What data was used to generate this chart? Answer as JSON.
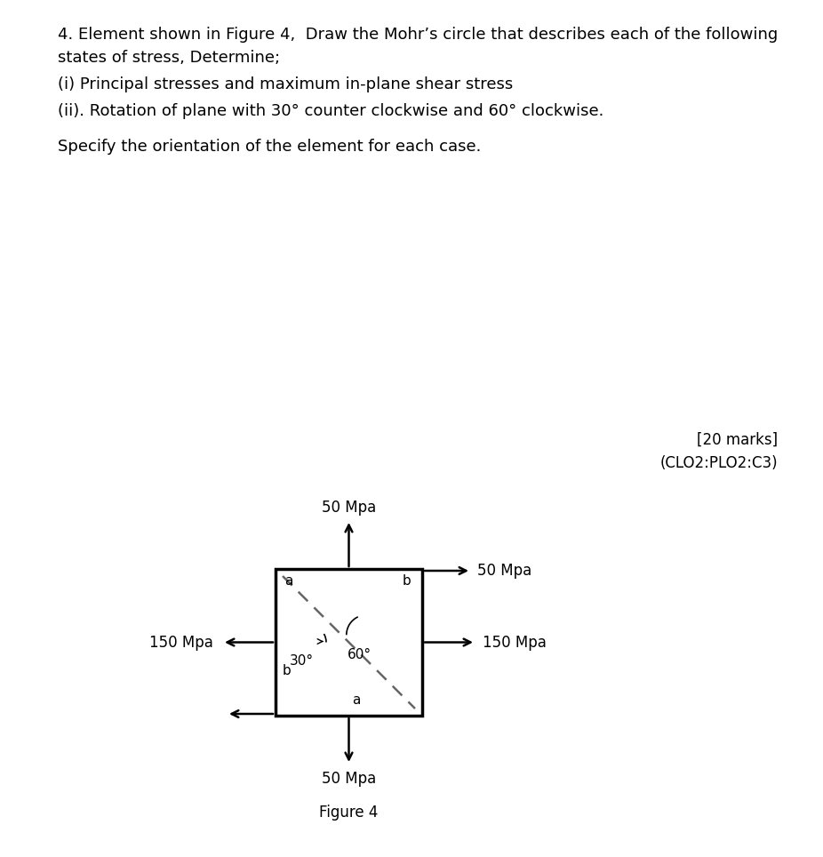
{
  "line0": "4. Element shown in Figure 4,  Draw the Mohr’s circle that describes each of the following",
  "line1": "states of stress, Determine;",
  "line2": "(i) Principal stresses and maximum in-plane shear stress",
  "line3": "(ii). Rotation of plane with 30° counter clockwise and 60° clockwise.",
  "line4": "Specify the orientation of the element for each case.",
  "marks_text": "[20 marks]",
  "clo_text": "(CLO2:PLO2:C3)",
  "fig_label": "Figure 4",
  "stress_top": "50 Mpa",
  "stress_bottom": "50 Mpa",
  "stress_right": "150 Mpa",
  "stress_left": "150 Mpa",
  "stress_top_right": "50 Mpa",
  "angle_30": "30°",
  "angle_60": "60°",
  "label_a_topleft": "a",
  "label_b_topright": "b",
  "label_b_botleft": "b",
  "label_a_botright": "a",
  "box_color": "#000000",
  "background_color": "#ffffff",
  "text_color": "#000000",
  "dashed_color": "#666666",
  "font_size_title": 13,
  "font_size_stress": 12,
  "font_size_angle": 11,
  "font_size_label": 11,
  "font_size_marks": 12
}
